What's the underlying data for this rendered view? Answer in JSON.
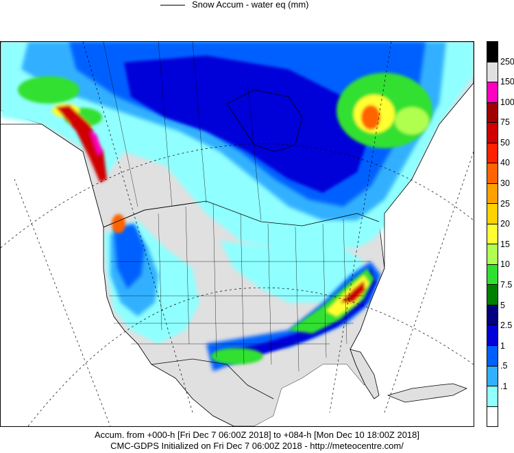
{
  "legend": {
    "series_label": "Snow Accum - water eq (mm)"
  },
  "colorbar": {
    "levels": [
      "250",
      "150",
      "100",
      "75",
      "50",
      "40",
      "30",
      "25",
      "20",
      "15",
      "10",
      "7.5",
      "5",
      "2.5",
      "1",
      ".5",
      ".1"
    ],
    "colors": [
      "#000000",
      "#e0e0e0",
      "#ff00c0",
      "#a00000",
      "#d00000",
      "#ff2000",
      "#ff6400",
      "#ffa000",
      "#ffd200",
      "#ffff30",
      "#b0ff50",
      "#30e030",
      "#008000",
      "#000080",
      "#0000d8",
      "#0060ff",
      "#30b0ff",
      "#90ffff",
      "#ffffff"
    ]
  },
  "caption": {
    "line1": "Accum. from +000-h [Fri Dec 7 06:00Z 2018] to +084-h [Mon Dec 10 18:00Z 2018]",
    "line2": "CMC-GDPS Initialized on Fri Dec 7 06:00Z 2018 - http://meteocentre.com/"
  }
}
